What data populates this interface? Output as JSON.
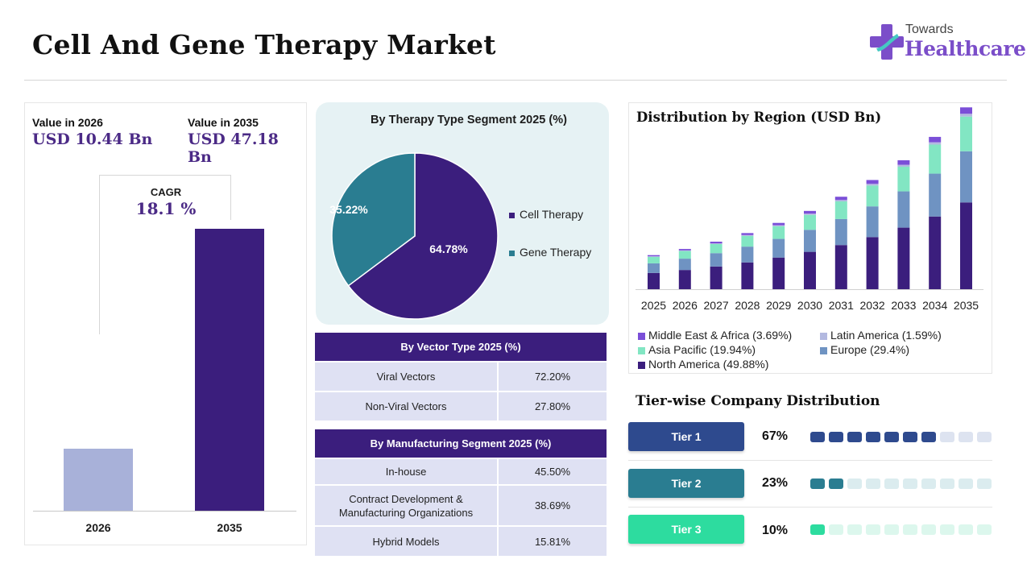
{
  "header": {
    "title": "Cell And Gene Therapy Market"
  },
  "logo": {
    "top_text": "Towards",
    "main_text": "Healthcare",
    "color": "#7b4ec9"
  },
  "value_panel": {
    "left_label": "Value in 2026",
    "left_value": "USD 10.44 Bn",
    "right_label": "Value in 2035",
    "right_value": "USD 47.18 Bn",
    "cagr_label": "CAGR",
    "cagr_value": "18.1 %"
  },
  "pie_panel": {
    "title": "By Therapy Type Segment 2025 (%)"
  },
  "vector_table": {
    "title": "By Vector Type 2025 (%)",
    "rows": [
      {
        "name": "Viral Vectors",
        "value": "72.20%"
      },
      {
        "name": "Non-Viral Vectors",
        "value": "27.80%"
      }
    ]
  },
  "manufacturing_table": {
    "title": "By Manufacturing Segment 2025 (%)",
    "rows": [
      {
        "name_line1": "In-house",
        "name_line2": "",
        "value": "45.50%"
      },
      {
        "name_line1": "Contract Development &",
        "name_line2": "Manufacturing Organizations",
        "value": "38.69%"
      },
      {
        "name_line1": "Hybrid Models",
        "name_line2": "",
        "value": "15.81%"
      }
    ]
  },
  "region_panel": {
    "title": "Distribution by Region (USD Bn)"
  },
  "tiers": {
    "title": "Tier-wise Company Distribution",
    "items": [
      {
        "label": "Tier 1",
        "pct": "67%",
        "filled": 7,
        "total": 10,
        "color": "#2e4a8e",
        "light": "#dde3f0"
      },
      {
        "label": "Tier 2",
        "pct": "23%",
        "filled": 2,
        "total": 10,
        "color": "#2a7d91",
        "light": "#dbecef"
      },
      {
        "label": "Tier 3",
        "pct": "10%",
        "filled": 1,
        "total": 10,
        "color": "#2ddc9f",
        "light": "#dcf7ed"
      }
    ]
  },
  "chart_data": [
    {
      "type": "bar",
      "categories": [
        "2026",
        "2035"
      ],
      "values": [
        10.44,
        47.18
      ],
      "colors": [
        "#a8b1d9",
        "#3b1e7d"
      ]
    },
    {
      "type": "pie",
      "title": "By Therapy Type Segment 2025 (%)",
      "labels": [
        "Cell Therapy",
        "Gene Therapy"
      ],
      "values": [
        64.78,
        35.22
      ],
      "value_labels": [
        "64.78%",
        "35.22%"
      ],
      "colors": [
        "#3b1e7d",
        "#2a7d91"
      ]
    },
    {
      "type": "bar",
      "stacked": true,
      "title": "Distribution by Region (USD Bn)",
      "categories": [
        "2025",
        "2026",
        "2027",
        "2028",
        "2029",
        "2030",
        "2031",
        "2032",
        "2033",
        "2034",
        "2035"
      ],
      "totals": [
        8.84,
        10.44,
        12.33,
        14.56,
        17.2,
        20.31,
        23.99,
        28.33,
        33.46,
        39.52,
        47.18
      ],
      "series": [
        {
          "name": "North America (49.88%)",
          "share": 0.4988,
          "color": "#3b1e7d"
        },
        {
          "name": "Europe (29.4%)",
          "share": 0.294,
          "color": "#6f93c2"
        },
        {
          "name": "Asia Pacific (19.94%)",
          "share": 0.1994,
          "color": "#82e6c3"
        },
        {
          "name": "Latin America (1.59%)",
          "share": 0.0159,
          "color": "#b3b9e0"
        },
        {
          "name": "Middle East & Africa (3.69%)",
          "share": 0.0369,
          "color": "#7b4fd8"
        }
      ],
      "ylim": [
        0,
        50
      ],
      "legend": "bottom"
    }
  ]
}
